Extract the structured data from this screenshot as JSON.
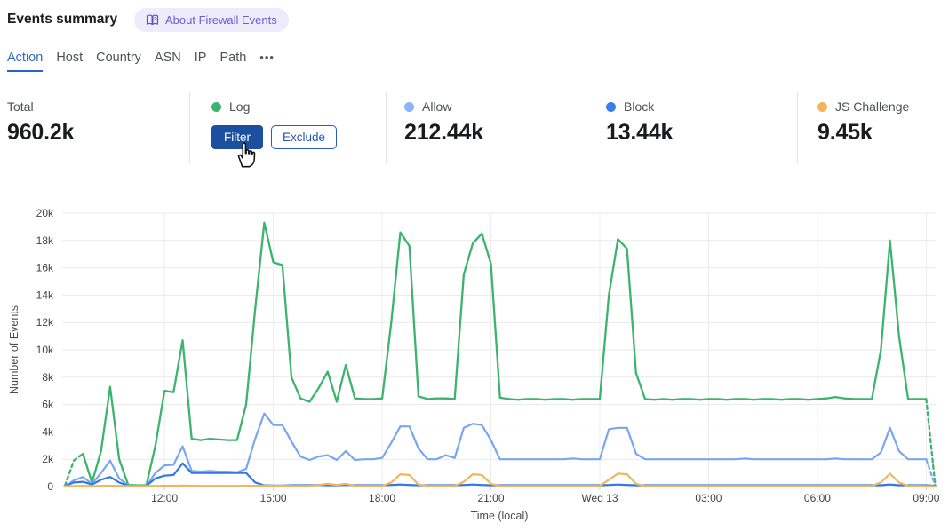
{
  "header": {
    "title": "Events summary",
    "badge": {
      "label": "About Firewall Events",
      "icon": "open-book-icon",
      "bg": "#edebfc",
      "color": "#6a5ed2"
    }
  },
  "tabs": {
    "items": [
      {
        "label": "Action",
        "active": true
      },
      {
        "label": "Host",
        "active": false
      },
      {
        "label": "Country",
        "active": false
      },
      {
        "label": "ASN",
        "active": false
      },
      {
        "label": "IP",
        "active": false
      },
      {
        "label": "Path",
        "active": false
      }
    ],
    "more_label": "•••",
    "active_color": "#2f6cc1"
  },
  "stats": {
    "cards": [
      {
        "label": "Total",
        "value": "960.2k",
        "dot_color": null
      },
      {
        "label": "Log",
        "value": null,
        "dot_color": "#3cb46e",
        "buttons": [
          {
            "label": "Filter",
            "style": "primary"
          },
          {
            "label": "Exclude",
            "style": "outline"
          }
        ]
      },
      {
        "label": "Allow",
        "value": "212.44k",
        "dot_color": "#8db4f6"
      },
      {
        "label": "Block",
        "value": "13.44k",
        "dot_color": "#3b80e8"
      },
      {
        "label": "JS Challenge",
        "value": "9.45k",
        "dot_color": "#f2b45c"
      }
    ]
  },
  "chart_data": {
    "type": "line",
    "xlabel": "Time (local)",
    "ylabel": "Number of Events",
    "grid": true,
    "legend_position": "none (stat cards act as legend)",
    "xlim": [
      9.18,
      33.26
    ],
    "ylim": [
      0,
      20000
    ],
    "x_unit": "hours local; 24 = Wed 13 00:00",
    "t_start": 9.25,
    "t_step": 0.25,
    "values_scale": 1000,
    "y_ticks": [
      {
        "v": 0,
        "label": "0"
      },
      {
        "v": 2000,
        "label": "2k"
      },
      {
        "v": 4000,
        "label": "4k"
      },
      {
        "v": 6000,
        "label": "6k"
      },
      {
        "v": 8000,
        "label": "8k"
      },
      {
        "v": 10000,
        "label": "10k"
      },
      {
        "v": 12000,
        "label": "12k"
      },
      {
        "v": 14000,
        "label": "14k"
      },
      {
        "v": 16000,
        "label": "16k"
      },
      {
        "v": 18000,
        "label": "18k"
      },
      {
        "v": 20000,
        "label": "20k"
      }
    ],
    "x_ticks": [
      {
        "t": 12,
        "label": "12:00"
      },
      {
        "t": 15,
        "label": "15:00"
      },
      {
        "t": 18,
        "label": "18:00"
      },
      {
        "t": 21,
        "label": "21:00"
      },
      {
        "t": 24,
        "label": "Wed 13"
      },
      {
        "t": 27,
        "label": "03:00"
      },
      {
        "t": 30,
        "label": "06:00"
      },
      {
        "t": 33,
        "label": "09:00"
      }
    ],
    "series": [
      {
        "name": "Log",
        "color": "#3cb46e",
        "width": 2.3,
        "dash_head": 2,
        "dash_tail": 1,
        "values": [
          0.05,
          1.9,
          2.4,
          0.3,
          2.6,
          7.3,
          2.0,
          0.12,
          0.1,
          0.1,
          3.0,
          7.0,
          6.9,
          10.7,
          3.5,
          3.4,
          3.5,
          3.45,
          3.4,
          3.4,
          6.0,
          13.0,
          19.3,
          16.4,
          16.2,
          8.0,
          6.45,
          6.2,
          7.2,
          8.4,
          6.2,
          8.9,
          6.45,
          6.4,
          6.4,
          6.45,
          12.0,
          18.6,
          17.6,
          6.6,
          6.4,
          6.45,
          6.45,
          6.4,
          15.5,
          17.8,
          18.5,
          16.3,
          6.5,
          6.4,
          6.35,
          6.4,
          6.4,
          6.35,
          6.4,
          6.4,
          6.35,
          6.4,
          6.4,
          6.4,
          14.0,
          18.1,
          17.4,
          8.3,
          6.4,
          6.35,
          6.4,
          6.35,
          6.4,
          6.4,
          6.35,
          6.4,
          6.4,
          6.35,
          6.4,
          6.4,
          6.35,
          6.4,
          6.4,
          6.35,
          6.4,
          6.4,
          6.35,
          6.4,
          6.45,
          6.55,
          6.45,
          6.4,
          6.4,
          6.4,
          10.0,
          18.0,
          11.0,
          6.4,
          6.4,
          6.4,
          0.05
        ]
      },
      {
        "name": "Allow",
        "color": "#79a6f4",
        "width": 2.2,
        "dash_head": 1,
        "dash_tail": 1,
        "values": [
          0.05,
          0.45,
          0.7,
          0.2,
          1.0,
          1.9,
          0.6,
          0.08,
          0.05,
          0.05,
          1.0,
          1.55,
          1.6,
          2.95,
          1.15,
          1.1,
          1.15,
          1.1,
          1.1,
          1.05,
          1.3,
          3.5,
          5.35,
          4.5,
          4.5,
          3.3,
          2.2,
          1.95,
          2.2,
          2.3,
          1.95,
          2.6,
          1.95,
          2.0,
          2.0,
          2.1,
          3.2,
          4.4,
          4.4,
          2.8,
          2.0,
          2.0,
          2.3,
          2.1,
          4.3,
          4.6,
          4.5,
          3.4,
          2.0,
          2.0,
          2.0,
          2.0,
          2.0,
          2.0,
          2.0,
          2.0,
          2.05,
          2.0,
          2.0,
          2.0,
          4.2,
          4.3,
          4.3,
          2.4,
          2.0,
          2.0,
          2.0,
          2.0,
          2.0,
          2.0,
          2.0,
          2.0,
          2.0,
          2.0,
          2.0,
          2.05,
          2.0,
          2.0,
          2.0,
          2.0,
          2.0,
          2.0,
          2.0,
          2.0,
          2.0,
          2.05,
          2.0,
          2.0,
          2.0,
          2.0,
          2.5,
          4.3,
          2.6,
          2.0,
          2.0,
          2.0,
          0.05
        ]
      },
      {
        "name": "Block",
        "color": "#3477e1",
        "width": 2.2,
        "dash_head": 0,
        "dash_tail": 0,
        "values": [
          0.05,
          0.3,
          0.35,
          0.15,
          0.5,
          0.7,
          0.3,
          0.05,
          0.05,
          0.05,
          0.6,
          0.8,
          0.85,
          1.7,
          1.0,
          1.0,
          1.0,
          1.0,
          1.0,
          1.0,
          1.0,
          0.3,
          0.1,
          0.08,
          0.08,
          0.1,
          0.1,
          0.1,
          0.12,
          0.1,
          0.1,
          0.12,
          0.1,
          0.1,
          0.1,
          0.1,
          0.12,
          0.15,
          0.12,
          0.1,
          0.1,
          0.1,
          0.1,
          0.1,
          0.12,
          0.15,
          0.12,
          0.1,
          0.1,
          0.1,
          0.1,
          0.1,
          0.1,
          0.1,
          0.1,
          0.1,
          0.1,
          0.1,
          0.1,
          0.1,
          0.12,
          0.15,
          0.12,
          0.1,
          0.1,
          0.1,
          0.1,
          0.1,
          0.1,
          0.1,
          0.1,
          0.1,
          0.1,
          0.1,
          0.1,
          0.1,
          0.1,
          0.1,
          0.1,
          0.1,
          0.1,
          0.1,
          0.1,
          0.1,
          0.1,
          0.1,
          0.1,
          0.1,
          0.1,
          0.1,
          0.1,
          0.15,
          0.1,
          0.1,
          0.1,
          0.1,
          0.05
        ]
      },
      {
        "name": "JS Challenge",
        "color": "#f0b55e",
        "width": 2.2,
        "dash_head": 0,
        "dash_tail": 0,
        "values": [
          0.03,
          0.04,
          0.05,
          0.04,
          0.05,
          0.06,
          0.05,
          0.04,
          0.04,
          0.04,
          0.05,
          0.06,
          0.06,
          0.08,
          0.06,
          0.05,
          0.05,
          0.05,
          0.05,
          0.05,
          0.06,
          0.06,
          0.08,
          0.06,
          0.06,
          0.05,
          0.05,
          0.05,
          0.12,
          0.2,
          0.12,
          0.2,
          0.06,
          0.05,
          0.05,
          0.05,
          0.3,
          0.9,
          0.85,
          0.15,
          0.05,
          0.05,
          0.05,
          0.05,
          0.35,
          0.9,
          0.85,
          0.2,
          0.05,
          0.05,
          0.05,
          0.05,
          0.05,
          0.05,
          0.05,
          0.05,
          0.05,
          0.05,
          0.05,
          0.05,
          0.5,
          0.95,
          0.9,
          0.2,
          0.05,
          0.05,
          0.05,
          0.05,
          0.05,
          0.05,
          0.05,
          0.05,
          0.05,
          0.05,
          0.05,
          0.05,
          0.05,
          0.05,
          0.05,
          0.05,
          0.05,
          0.05,
          0.05,
          0.05,
          0.05,
          0.05,
          0.05,
          0.05,
          0.05,
          0.05,
          0.3,
          0.95,
          0.3,
          0.05,
          0.05,
          0.04,
          0.02
        ]
      }
    ]
  }
}
